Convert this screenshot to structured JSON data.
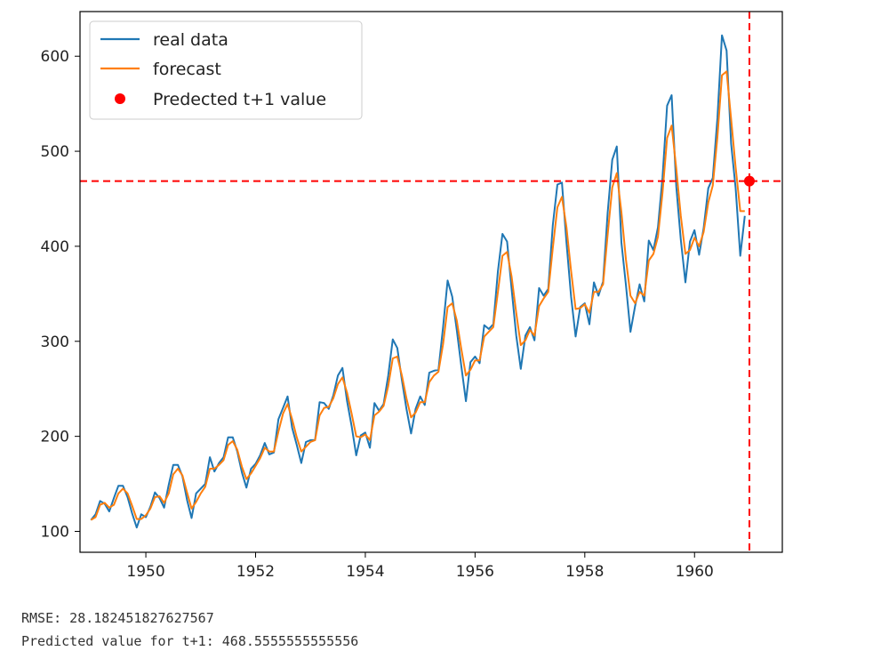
{
  "chart_data": {
    "type": "line",
    "title": "",
    "xlabel": "",
    "ylabel": "",
    "xlim": [
      1948.8,
      1961.6
    ],
    "ylim": [
      78,
      647
    ],
    "xticks": [
      1950,
      1952,
      1954,
      1956,
      1958,
      1960
    ],
    "yticks": [
      100,
      200,
      300,
      400,
      500,
      600
    ],
    "grid": false,
    "legend_position": "top-left",
    "series": [
      {
        "name": "real data",
        "color": "#1f77b4",
        "start_year": 1949,
        "step": 0.0833333,
        "values": [
          112,
          118,
          132,
          129,
          121,
          135,
          148,
          148,
          136,
          119,
          104,
          118,
          115,
          126,
          141,
          135,
          125,
          149,
          170,
          170,
          158,
          133,
          114,
          140,
          145,
          150,
          178,
          163,
          172,
          178,
          199,
          199,
          184,
          162,
          146,
          166,
          171,
          180,
          193,
          181,
          183,
          218,
          230,
          242,
          209,
          191,
          172,
          194,
          196,
          196,
          236,
          235,
          229,
          243,
          264,
          272,
          237,
          211,
          180,
          201,
          204,
          188,
          235,
          227,
          234,
          264,
          302,
          293,
          259,
          229,
          203,
          229,
          242,
          233,
          267,
          269,
          270,
          315,
          364,
          347,
          312,
          274,
          237,
          278,
          284,
          277,
          317,
          313,
          318,
          374,
          413,
          405,
          355,
          306,
          271,
          306,
          315,
          301,
          356,
          348,
          355,
          422,
          465,
          467,
          404,
          347,
          305,
          336,
          340,
          318,
          362,
          348,
          363,
          435,
          491,
          505,
          404,
          359,
          310,
          337,
          360,
          342,
          406,
          396,
          420,
          472,
          548,
          559,
          463,
          407,
          362,
          405,
          417,
          391,
          419,
          461,
          472,
          535,
          622,
          606,
          508,
          461,
          390,
          432
        ]
      },
      {
        "name": "forecast",
        "color": "#ff7f0e",
        "start_year": 1949,
        "step": 0.0833333,
        "values": [
          112,
          115,
          128,
          130,
          125,
          128,
          140,
          145,
          140,
          127,
          113,
          113,
          117,
          124,
          136,
          137,
          130,
          140,
          160,
          166,
          159,
          141,
          124,
          131,
          140,
          147,
          166,
          166,
          170,
          175,
          191,
          195,
          186,
          168,
          155,
          161,
          169,
          177,
          188,
          184,
          184,
          205,
          224,
          234,
          218,
          199,
          184,
          189,
          194,
          196,
          222,
          230,
          231,
          240,
          255,
          262,
          246,
          224,
          200,
          199,
          202,
          196,
          222,
          226,
          232,
          253,
          282,
          284,
          264,
          240,
          220,
          225,
          236,
          236,
          257,
          264,
          268,
          297,
          336,
          340,
          322,
          292,
          264,
          270,
          280,
          280,
          305,
          310,
          315,
          352,
          390,
          394,
          368,
          330,
          296,
          301,
          312,
          306,
          337,
          345,
          352,
          398,
          441,
          452,
          420,
          374,
          334,
          335,
          339,
          330,
          352,
          352,
          360,
          412,
          462,
          477,
          436,
          386,
          348,
          340,
          352,
          348,
          385,
          392,
          410,
          456,
          514,
          527,
          482,
          432,
          392,
          396,
          409,
          400,
          415,
          446,
          464,
          515,
          580,
          584,
          534,
          483,
          437,
          437
        ]
      }
    ],
    "predicted": {
      "name": "Predected t+1 value",
      "color": "#ff0000",
      "x": 1961.0,
      "y": 468.5555555555556
    },
    "reference_lines": {
      "horizontal_y": 468.5555555555556,
      "vertical_x": 1961.0,
      "color": "#ff0000"
    }
  },
  "output": {
    "line1": "RMSE: 28.182451827627567",
    "line2": "Predicted value for t+1: 468.5555555555556"
  }
}
